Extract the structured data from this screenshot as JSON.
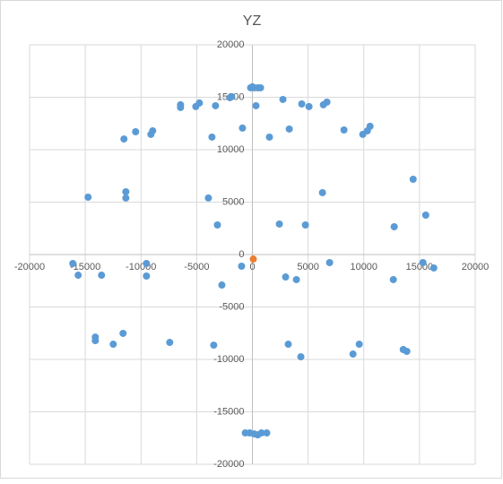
{
  "chart_data": {
    "type": "scatter",
    "title": "YZ",
    "xlim": [
      -20000,
      20000
    ],
    "xticks": [
      -20000,
      -15000,
      -10000,
      -5000,
      0,
      5000,
      10000,
      15000,
      20000
    ],
    "ylim": [
      -20000,
      20000
    ],
    "yticks": [
      -20000,
      -15000,
      -10000,
      -5000,
      0,
      5000,
      10000,
      15000,
      20000
    ],
    "grid": true,
    "series": [
      {
        "color": "#5b9bd5",
        "x": [
          -16120,
          -15640,
          -13540,
          -14750,
          -11360,
          -11360,
          -11530,
          -10480,
          -8950,
          -9110,
          -6450,
          -6450,
          -5080,
          -4760,
          -3310,
          -2020,
          -1860,
          -3630,
          -3950,
          -3140,
          -9510,
          -9510,
          -14100,
          -14100,
          -11610,
          -12490,
          -7420,
          -3470,
          -2740,
          -970,
          -890,
          320,
          1530,
          2740,
          3310,
          4430,
          5080,
          2420,
          4760,
          6290,
          6370,
          6690,
          8220,
          6930,
          9910,
          10320,
          10560,
          14430,
          15560,
          12730,
          15310,
          16280,
          12650,
          2980,
          3950,
          3220,
          4350,
          9030,
          9590,
          13540,
          13860,
          -160,
          160,
          480,
          730,
          0,
          -640,
          -240,
          160,
          480,
          810,
          1290
        ],
        "y": [
          -855,
          -1970,
          -1970,
          5470,
          5985,
          5390,
          11020,
          11710,
          11800,
          11460,
          14280,
          14020,
          14110,
          14450,
          14190,
          14960,
          15050,
          11200,
          5390,
          2820,
          -855,
          -2050,
          -7870,
          -8210,
          -7520,
          -8550,
          -8380,
          -8640,
          -2910,
          -1110,
          12060,
          14190,
          11200,
          14790,
          11970,
          14360,
          14110,
          2910,
          2820,
          5900,
          14280,
          14540,
          11880,
          -770,
          11460,
          11800,
          12230,
          7180,
          3760,
          2650,
          -770,
          -1280,
          -2390,
          -2140,
          -2390,
          -8550,
          -9750,
          -9490,
          -8550,
          -9060,
          -9230,
          15900,
          15900,
          15900,
          15900,
          15990,
          -17010,
          -17010,
          -17100,
          -17190,
          -17010,
          -17010
        ]
      },
      {
        "color": "#ed7d31",
        "x": [
          80
        ],
        "y": [
          -430
        ]
      }
    ]
  }
}
